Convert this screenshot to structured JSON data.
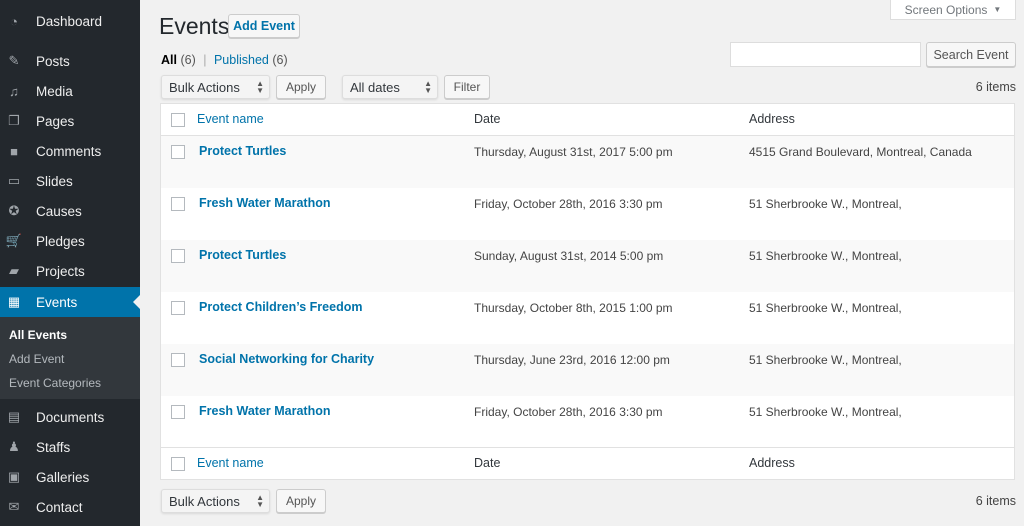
{
  "sidebar": {
    "items": [
      {
        "label": "Dashboard",
        "icon": "dashboard-icon"
      },
      {
        "label": "Posts",
        "icon": "pin-icon"
      },
      {
        "label": "Media",
        "icon": "media-icon"
      },
      {
        "label": "Pages",
        "icon": "pages-icon"
      },
      {
        "label": "Comments",
        "icon": "comment-icon"
      },
      {
        "label": "Slides",
        "icon": "slides-icon"
      },
      {
        "label": "Causes",
        "icon": "causes-icon"
      },
      {
        "label": "Pledges",
        "icon": "cart-icon"
      },
      {
        "label": "Projects",
        "icon": "folder-icon"
      },
      {
        "label": "Events",
        "icon": "calendar-icon"
      },
      {
        "label": "Documents",
        "icon": "document-icon"
      },
      {
        "label": "Staffs",
        "icon": "users-icon"
      },
      {
        "label": "Galleries",
        "icon": "gallery-icon"
      },
      {
        "label": "Contact",
        "icon": "mail-icon"
      }
    ],
    "submenu": [
      "All Events",
      "Add Event",
      "Event Categories"
    ]
  },
  "header": {
    "title": "Events",
    "add_label": "Add Event",
    "screen_options": "Screen Options"
  },
  "filters": {
    "all": "All",
    "all_count": "(6)",
    "sep": "|",
    "published": "Published",
    "published_count": "(6)"
  },
  "search": {
    "value": "",
    "button": "Search Event"
  },
  "toolbar": {
    "bulk": "Bulk Actions",
    "apply": "Apply",
    "dates": "All dates",
    "filter": "Filter",
    "count": "6 items"
  },
  "table": {
    "columns": [
      "Event name",
      "Date",
      "Address"
    ],
    "rows": [
      {
        "name": "Protect Turtles",
        "date": "Thursday, August 31st, 2017 5:00 pm",
        "address": "4515 Grand Boulevard, Montreal, Canada"
      },
      {
        "name": "Fresh Water Marathon",
        "date": "Friday, October 28th, 2016 3:30 pm",
        "address": "51 Sherbrooke W., Montreal,"
      },
      {
        "name": "Protect Turtles",
        "date": "Sunday, August 31st, 2014 5:00 pm",
        "address": "51 Sherbrooke W., Montreal,"
      },
      {
        "name": "Protect Children’s Freedom",
        "date": "Thursday, October 8th, 2015 1:00 pm",
        "address": "51 Sherbrooke W., Montreal,"
      },
      {
        "name": "Social Networking for Charity",
        "date": "Thursday, June 23rd, 2016 12:00 pm",
        "address": "51 Sherbrooke W., Montreal,"
      },
      {
        "name": "Fresh Water Marathon",
        "date": "Friday, October 28th, 2016 3:30 pm",
        "address": "51 Sherbrooke W., Montreal,"
      }
    ]
  }
}
